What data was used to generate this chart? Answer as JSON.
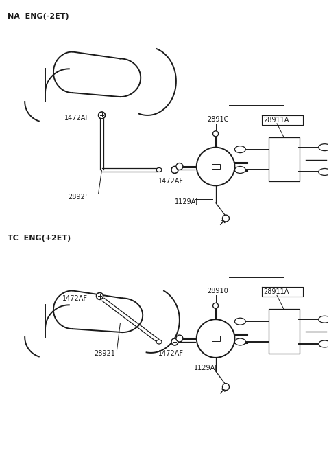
{
  "bg_color": "#ffffff",
  "line_color": "#1a1a1a",
  "fig_width": 4.8,
  "fig_height": 6.57,
  "dpi": 100,
  "top_label": "NA  ENG(-2ET)",
  "bottom_label": "TC  ENG(+2ET)",
  "top_parts": {
    "clamp1_label": "1472AF",
    "clamp2_label": "1472AF",
    "hose_label": "2892¹",
    "valve_label": "2891C",
    "bracket_label": "28911A",
    "bolt_label": "1129AJ"
  },
  "bottom_parts": {
    "clamp1_label": "1472AF",
    "clamp2_label": "1472AF",
    "hose_label": "28921",
    "valve_label": "28910",
    "bracket_label": "28911A",
    "bolt_label": "1129AJ"
  }
}
